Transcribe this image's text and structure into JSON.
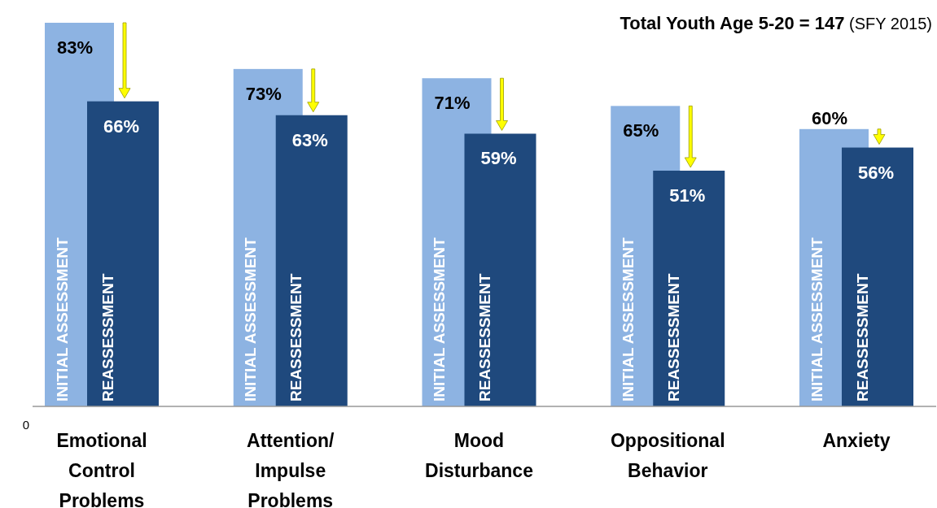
{
  "chart_data": {
    "type": "bar",
    "title": "Total Youth Age 5-20 = 147",
    "subtitle": "(SFY 2015)",
    "categories": [
      "Emotional Control Problems",
      "Attention/ Impulse Problems",
      "Mood Disturbance",
      "Oppositional Behavior",
      "Anxiety"
    ],
    "series": [
      {
        "name": "INITIAL ASSESSMENT",
        "color": "#8db3e2",
        "values": [
          83,
          73,
          71,
          65,
          60
        ],
        "value_labels": [
          "83%",
          "73%",
          "71%",
          "65%",
          "60%"
        ]
      },
      {
        "name": "REASSESSMENT",
        "color": "#1f497d",
        "values": [
          66,
          63,
          59,
          51,
          56
        ],
        "value_labels": [
          "66%",
          "63%",
          "59%",
          "51%",
          "56%"
        ]
      }
    ],
    "annotations": [
      "0"
    ]
  }
}
